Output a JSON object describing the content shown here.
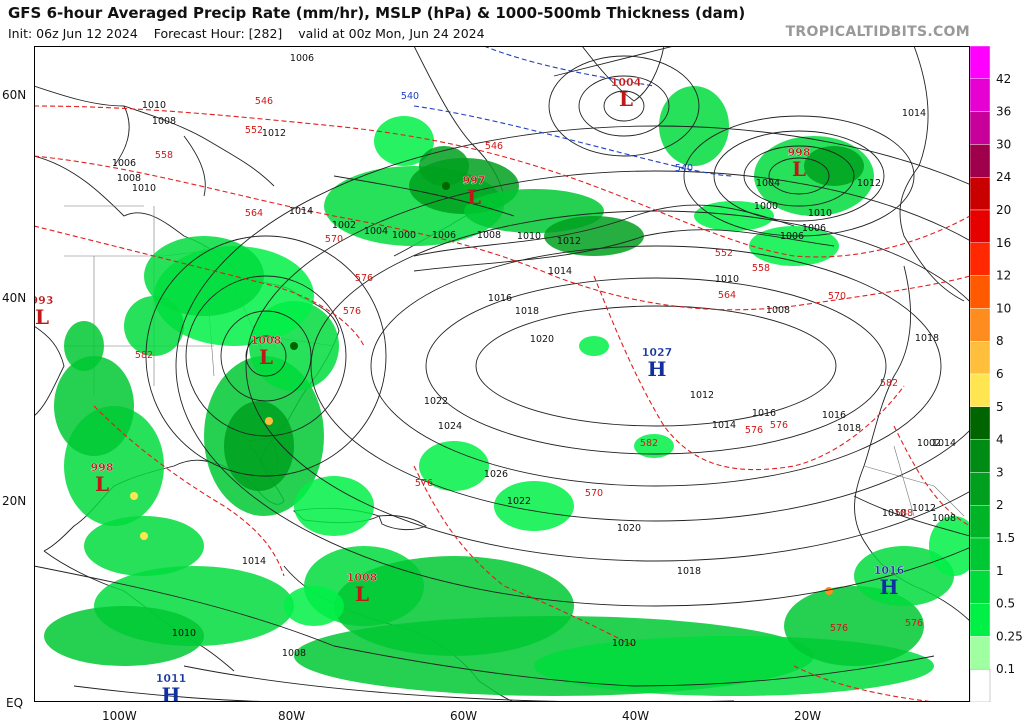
{
  "header": {
    "title": "GFS 6-hour Averaged Precip Rate (mm/hr), MSLP (hPa) & 1000-500mb Thickness (dam)",
    "init": "Init: 06z Jun 12 2024",
    "forecast_hour": "Forecast Hour: [282]",
    "valid": "valid at 00z Mon, Jun 24 2024",
    "brand": "TROPICALTIDBITS.COM"
  },
  "axes": {
    "lat_labels": [
      "60N",
      "40N",
      "20N",
      "EQ"
    ],
    "lon_labels": [
      "100W",
      "80W",
      "60W",
      "40W",
      "20W"
    ]
  },
  "colorbar": {
    "labels": [
      "42",
      "36",
      "30",
      "24",
      "20",
      "16",
      "12",
      "10",
      "8",
      "6",
      "5",
      "4",
      "3",
      "2",
      "1.5",
      "1",
      "0.5",
      "0.25",
      "0.1"
    ],
    "colors": [
      "#ff00ff",
      "#e600d2",
      "#c8009b",
      "#a0004b",
      "#c80000",
      "#e60000",
      "#ff2800",
      "#ff5a00",
      "#ff8c1e",
      "#ffbe3c",
      "#ffe650",
      "#006400",
      "#008c14",
      "#00a01e",
      "#00b428",
      "#00c832",
      "#00dc3c",
      "#00f046",
      "#a0ffa0"
    ]
  },
  "systems": [
    {
      "type": "L",
      "value": "1004",
      "color": "#c01818"
    },
    {
      "type": "L",
      "value": "998",
      "color": "#c01818"
    },
    {
      "type": "L",
      "value": "997",
      "color": "#c01818"
    },
    {
      "type": "L",
      "value": "993",
      "color": "#c01818"
    },
    {
      "type": "L",
      "value": "1008",
      "color": "#c01818"
    },
    {
      "type": "H",
      "value": "1027",
      "color": "#1030a0"
    },
    {
      "type": "L",
      "value": "998",
      "color": "#c01818"
    },
    {
      "type": "L",
      "value": "1008",
      "color": "#c01818"
    },
    {
      "type": "H",
      "value": "1016",
      "color": "#1030a0"
    },
    {
      "type": "H",
      "value": "1011",
      "color": "#1030a0"
    }
  ],
  "isobar_labels": [
    "1006",
    "1010",
    "1008",
    "1012",
    "1006",
    "1008",
    "1010",
    "1014",
    "1002",
    "1004",
    "1000",
    "1006",
    "1008",
    "1010",
    "1012",
    "1014",
    "1016",
    "1018",
    "1020",
    "1022",
    "1024",
    "1026",
    "1022",
    "1020",
    "1018",
    "1016",
    "1014",
    "1012",
    "1010",
    "1008",
    "1006",
    "1004",
    "1000",
    "1006",
    "1010",
    "1012",
    "1014",
    "1018",
    "1016",
    "1018",
    "1014",
    "1012",
    "1010",
    "1008",
    "1002",
    "1010",
    "1008",
    "1010",
    "1014"
  ],
  "thickness_labels": [
    "546",
    "552",
    "558",
    "564",
    "570",
    "576",
    "576",
    "582",
    "540",
    "540",
    "546",
    "552",
    "558",
    "564",
    "570",
    "576",
    "576",
    "582",
    "588",
    "582",
    "576",
    "576",
    "576",
    "570"
  ]
}
